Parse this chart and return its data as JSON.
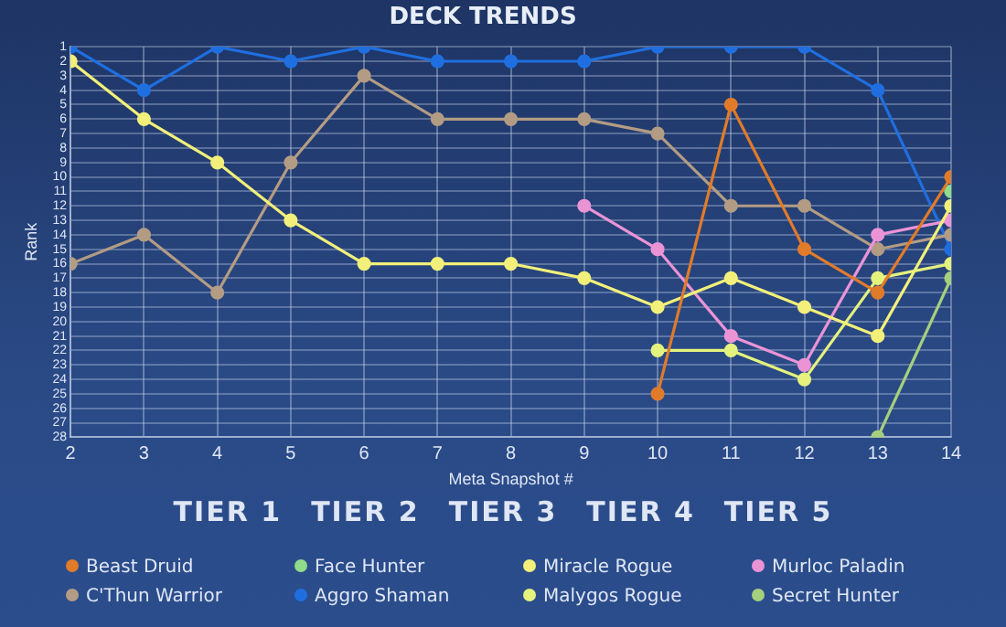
{
  "chart_data": {
    "type": "line",
    "title": "DECK TRENDS",
    "xlabel": "Meta Snapshot #",
    "ylabel": "Rank",
    "x": [
      2,
      3,
      4,
      5,
      6,
      7,
      8,
      9,
      10,
      11,
      12,
      13,
      14
    ],
    "xlim": [
      2,
      14
    ],
    "xticks": [
      2,
      3,
      4,
      5,
      6,
      7,
      8,
      9,
      10,
      11,
      12,
      13,
      14
    ],
    "ylim": [
      28,
      1
    ],
    "yticks": [
      1,
      2,
      3,
      4,
      5,
      6,
      7,
      8,
      9,
      10,
      11,
      12,
      13,
      14,
      15,
      16,
      17,
      18,
      19,
      20,
      21,
      22,
      23,
      24,
      25,
      26,
      27,
      28
    ],
    "grid": true,
    "legend": "bottom",
    "marker": "circle",
    "line_style": "solid",
    "annotations": [
      "TIER 1",
      "TIER 2",
      "TIER 3",
      "TIER 4",
      "TIER 5"
    ],
    "series": [
      {
        "name": "Beast Druid",
        "color": "#e07b2a",
        "values": [
          null,
          null,
          null,
          null,
          null,
          null,
          null,
          null,
          25,
          5,
          15,
          18,
          10
        ]
      },
      {
        "name": "Face Hunter",
        "color": "#8fdc8a",
        "values": [
          null,
          null,
          null,
          null,
          null,
          null,
          null,
          null,
          null,
          null,
          null,
          null,
          11
        ]
      },
      {
        "name": "Miracle Rogue",
        "color": "#f2f07a",
        "values": [
          2,
          6,
          9,
          13,
          16,
          16,
          16,
          17,
          19,
          17,
          19,
          21,
          12
        ]
      },
      {
        "name": "Murloc Paladin",
        "color": "#ea94d6",
        "values": [
          null,
          null,
          null,
          null,
          null,
          null,
          null,
          12,
          15,
          21,
          23,
          14,
          13
        ]
      },
      {
        "name": "C'Thun Warrior",
        "color": "#b39c84",
        "values": [
          16,
          14,
          18,
          9,
          3,
          6,
          6,
          6,
          7,
          12,
          12,
          15,
          14
        ]
      },
      {
        "name": "Aggro Shaman",
        "color": "#1f6fe0",
        "values": [
          1,
          4,
          1,
          2,
          1,
          2,
          2,
          2,
          1,
          1,
          1,
          4,
          15
        ]
      },
      {
        "name": "Malygos Rogue",
        "color": "#e4f27e",
        "values": [
          null,
          null,
          null,
          null,
          null,
          null,
          null,
          null,
          22,
          22,
          24,
          17,
          16
        ]
      },
      {
        "name": "Secret Hunter",
        "color": "#a6cf7e",
        "values": [
          null,
          null,
          null,
          null,
          null,
          null,
          null,
          null,
          null,
          null,
          null,
          28,
          17
        ]
      }
    ]
  }
}
